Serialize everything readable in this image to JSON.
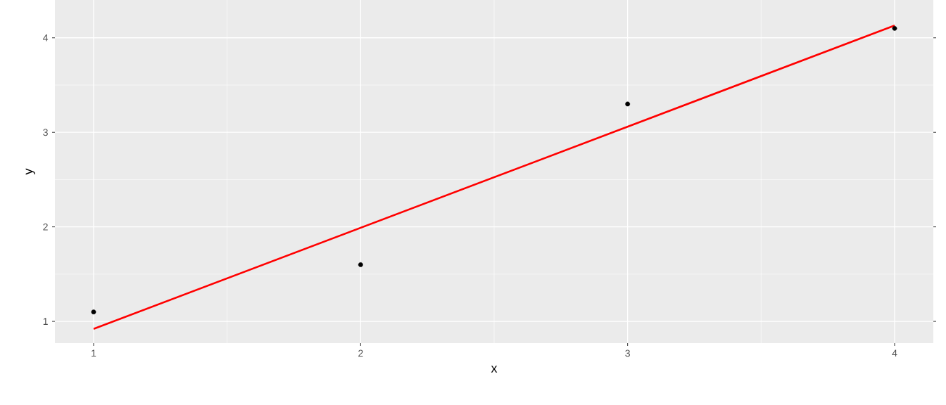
{
  "chart_data": {
    "type": "scatter",
    "xlabel": "x",
    "ylabel": "y",
    "xlim": [
      0.855,
      4.145
    ],
    "ylim": [
      0.77,
      4.4
    ],
    "xticks": [
      1,
      2,
      3,
      4
    ],
    "yticks": [
      1,
      2,
      3,
      4
    ],
    "grid": true,
    "series": [
      {
        "marker": "circle",
        "color": "#000000",
        "x": [
          1,
          2,
          3,
          4
        ],
        "values": [
          1.1,
          1.6,
          3.3,
          4.1
        ]
      },
      {
        "type": "line",
        "marker": "none",
        "color": "#ff0000",
        "x": [
          1,
          4
        ],
        "values": [
          0.92,
          4.13
        ]
      }
    ]
  }
}
